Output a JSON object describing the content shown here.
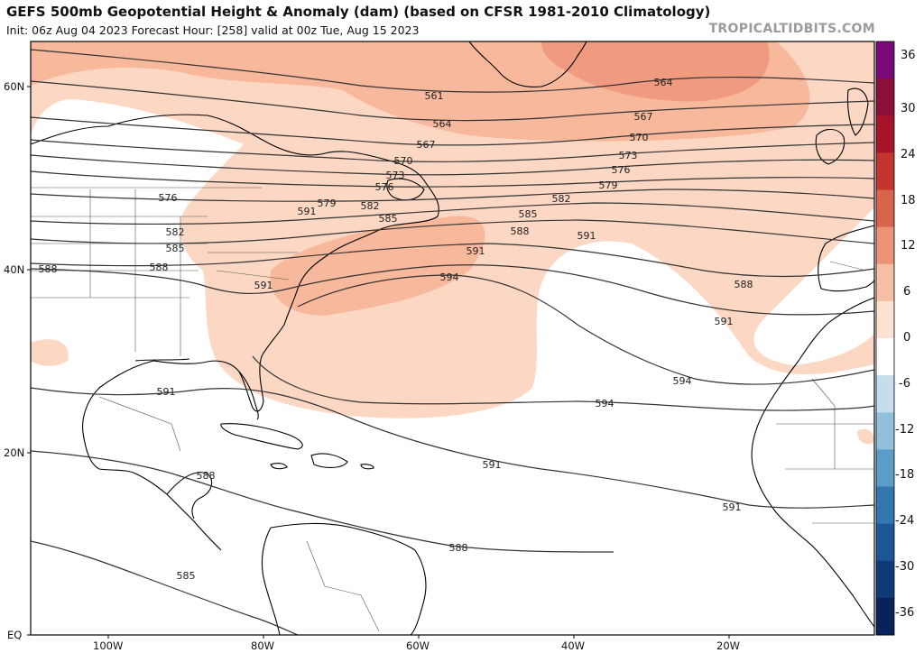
{
  "header": {
    "title": "GEFS 500mb Geopotential Height & Anomaly (dam) (based on CFSR 1981-2010 Climatology)",
    "subtitle": "Init: 06z Aug 04 2023   Forecast Hour: [258]   valid at 00z Tue, Aug 15 2023",
    "site": "TROPICALTIDBITS.COM"
  },
  "axes": {
    "lat_labels": [
      "60N",
      "40N",
      "20N",
      "EQ"
    ],
    "lon_labels": [
      "100W",
      "80W",
      "60W",
      "40W",
      "20W"
    ]
  },
  "colorbar": {
    "labels": [
      "36",
      "30",
      "24",
      "18",
      "12",
      "6",
      "0",
      "-6",
      "-12",
      "-18",
      "-24",
      "-30",
      "-36"
    ],
    "colors": [
      "#7a0a7a",
      "#8b0f3a",
      "#a8152b",
      "#c4352e",
      "#d9644c",
      "#ec9378",
      "#f6bea3",
      "#fde1d2",
      "#ffffff",
      "#c6ddec",
      "#92c1dd",
      "#5c9cc8",
      "#3476b0",
      "#1c5696",
      "#0e3a78",
      "#07235a"
    ]
  },
  "contours": {
    "labels": [
      "561",
      "564",
      "567",
      "570",
      "573",
      "576",
      "579",
      "582",
      "585",
      "588",
      "591",
      "594",
      "591",
      "594",
      "591",
      "591",
      "588",
      "588",
      "585",
      "564",
      "567",
      "570",
      "573",
      "576",
      "579",
      "582",
      "585",
      "588",
      "591",
      "594",
      "591",
      "588",
      "576",
      "582",
      "585",
      "588",
      "591",
      "591"
    ]
  }
}
